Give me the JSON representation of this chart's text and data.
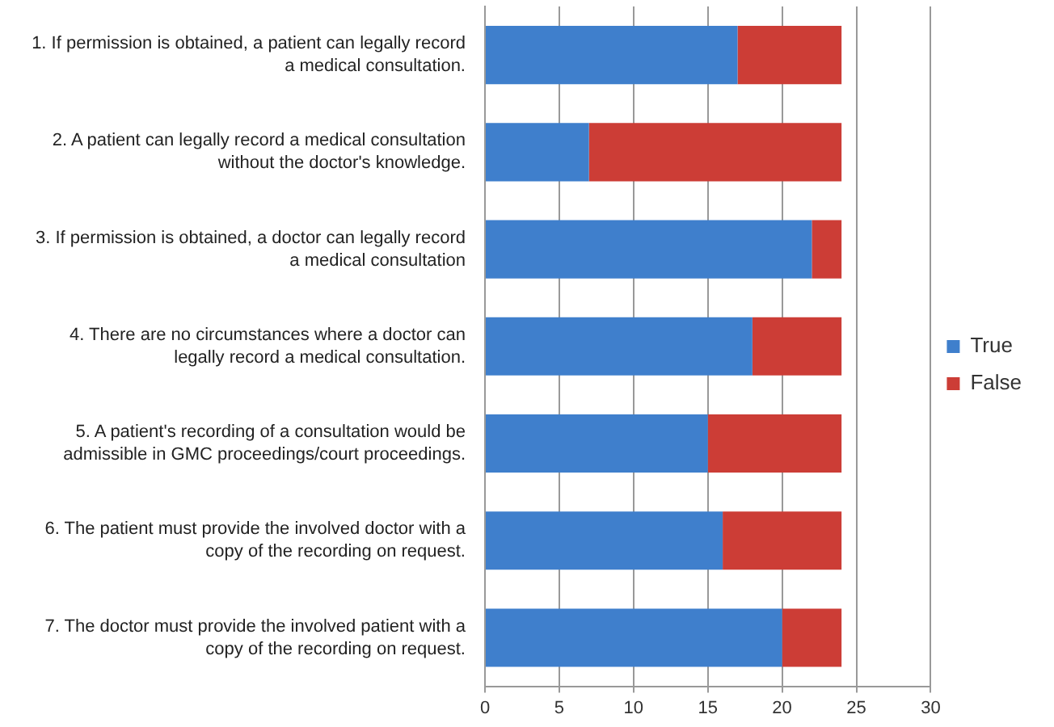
{
  "chart_data": {
    "type": "bar",
    "orientation": "horizontal",
    "stacked": true,
    "categories": [
      "1. If permission is obtained, a patient can legally record a medical consultation.",
      "2. A patient can legally record a medical consultation without the doctor's knowledge.",
      "3. If permission is obtained, a doctor can legally record a medical consultation",
      "4. There are no circumstances where a doctor can legally record a medical consultation.",
      "5. A patient's recording of a consultation would be admissible in GMC proceedings/court proceedings.",
      "6. The patient must provide the involved doctor with a copy of the recording on request.",
      "7. The doctor must provide the involved patient with a copy of the recording on request."
    ],
    "series": [
      {
        "name": "True",
        "color": "#3f7fcc",
        "values": [
          17,
          7,
          22,
          18,
          15,
          16,
          20
        ]
      },
      {
        "name": "False",
        "color": "#cc3d36",
        "values": [
          7,
          17,
          2,
          6,
          9,
          8,
          4
        ]
      }
    ],
    "xlim": [
      0,
      30
    ],
    "xticks": [
      0,
      5,
      10,
      15,
      20,
      25,
      30
    ],
    "grid": "x",
    "legend": "right"
  }
}
